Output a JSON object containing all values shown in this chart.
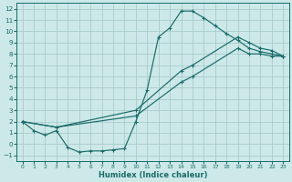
{
  "xlabel": "Humidex (Indice chaleur)",
  "bg_color": "#cce8e8",
  "grid_color": "#aacccc",
  "line_color": "#1a6b6b",
  "xlim": [
    -0.5,
    23.5
  ],
  "ylim": [
    -1.5,
    12.5
  ],
  "xticks": [
    0,
    1,
    2,
    3,
    4,
    5,
    6,
    7,
    8,
    9,
    10,
    11,
    12,
    13,
    14,
    15,
    16,
    17,
    18,
    19,
    20,
    21,
    22,
    23
  ],
  "yticks": [
    -1,
    0,
    1,
    2,
    3,
    4,
    5,
    6,
    7,
    8,
    9,
    10,
    11,
    12
  ],
  "curve1_x": [
    0,
    1,
    2,
    3,
    4,
    5,
    6,
    7,
    8,
    9,
    10,
    11,
    12,
    13,
    14,
    15,
    16,
    17,
    18,
    19,
    20,
    21,
    22,
    23
  ],
  "curve1_y": [
    2.0,
    1.2,
    0.8,
    1.2,
    -0.3,
    -0.7,
    -0.6,
    -0.6,
    -0.5,
    -0.4,
    2.0,
    4.8,
    9.5,
    10.3,
    11.8,
    11.8,
    11.2,
    10.5,
    9.8,
    9.2,
    8.5,
    8.2,
    8.0,
    7.8
  ],
  "curve2_x": [
    0,
    3,
    10,
    14,
    15,
    19,
    20,
    21,
    22,
    23
  ],
  "curve2_y": [
    2.0,
    1.5,
    3.0,
    6.5,
    7.0,
    9.5,
    9.0,
    8.5,
    8.3,
    7.8
  ],
  "curve3_x": [
    0,
    3,
    10,
    14,
    15,
    19,
    20,
    21,
    22,
    23
  ],
  "curve3_y": [
    2.0,
    1.5,
    2.5,
    5.5,
    6.0,
    8.5,
    8.0,
    8.0,
    7.8,
    7.8
  ]
}
